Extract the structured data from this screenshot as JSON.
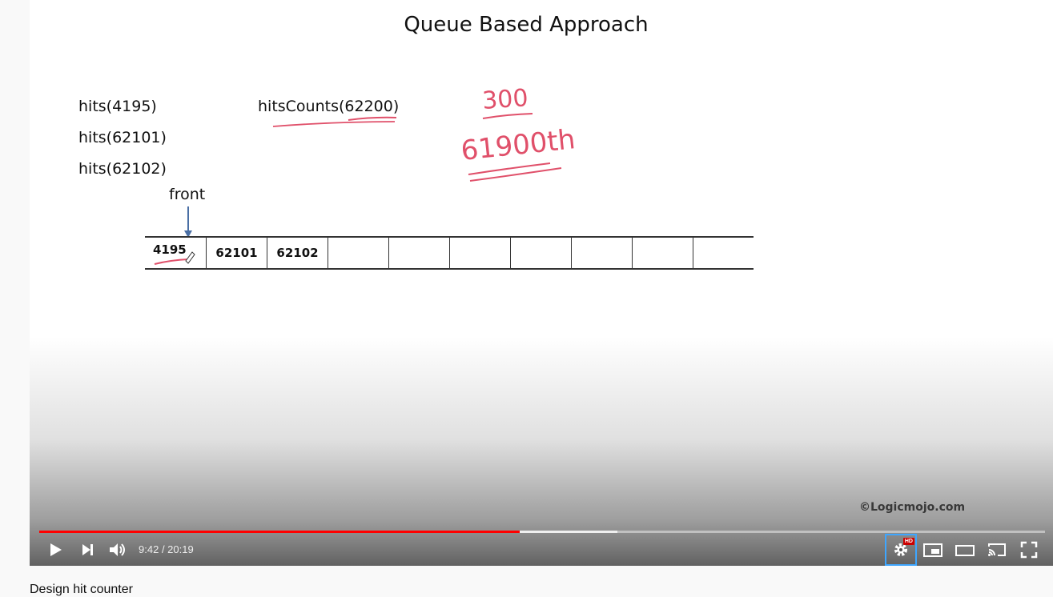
{
  "slide": {
    "title": "Queue Based Approach",
    "calls": [
      "hits(4195)",
      "hits(62101)",
      "hits(62102)"
    ],
    "query": "hitsCounts(62200)",
    "front_label": "front",
    "queue_cells": [
      "4195",
      "62101",
      "62102",
      "",
      "",
      "",
      "",
      "",
      "",
      ""
    ],
    "handwritten_1": "300",
    "handwritten_2": "61900th",
    "watermark": "©Logicmojo.com"
  },
  "player": {
    "current_time": "9:42",
    "duration": "20:19",
    "progress_fraction": 0.4777,
    "buffered_fraction": 0.5748,
    "quality_badge": "HD",
    "accent_color": "#ff0000",
    "icons": {
      "play": "play-icon",
      "next": "next-icon",
      "volume": "volume-icon",
      "settings": "settings-gear-icon",
      "miniplayer": "miniplayer-icon",
      "theater": "theater-mode-icon",
      "cast": "cast-icon",
      "fullscreen": "fullscreen-icon"
    }
  },
  "video": {
    "title": "Design hit counter"
  }
}
